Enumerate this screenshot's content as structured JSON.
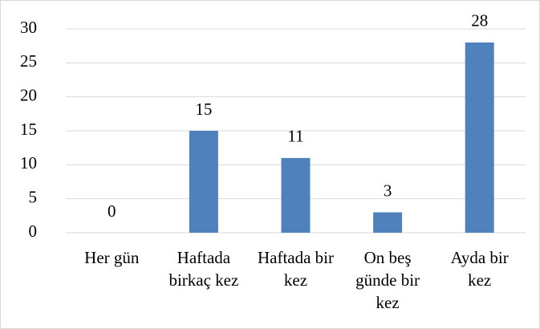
{
  "chart_data": {
    "type": "bar",
    "categories": [
      "Her gün",
      "Haftada birkaç kez",
      "Haftada bir kez",
      "On beş günde bir kez",
      "Ayda bir kez"
    ],
    "values": [
      0,
      15,
      11,
      3,
      28
    ],
    "color": "#4f81bd",
    "ylim": [
      0,
      30
    ],
    "yticks": [
      0,
      5,
      10,
      15,
      20,
      25,
      30
    ],
    "grid": true
  }
}
